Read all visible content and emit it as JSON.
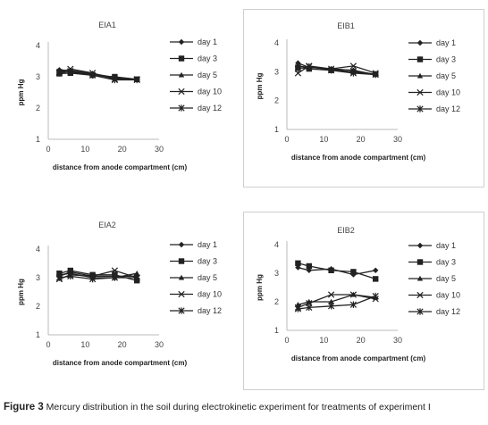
{
  "caption": {
    "figure_number": "Figure 3",
    "text": "Mercury distribution in the soil during electrokinetic experiment for treatments of experiment I"
  },
  "chart_data": [
    {
      "type": "line",
      "title": "EIA1",
      "xlabel": "distance from anode compartment (cm)",
      "ylabel": "ppm Hg",
      "xlim": [
        0,
        30
      ],
      "ylim": [
        1,
        4
      ],
      "xticks": [
        0,
        10,
        20,
        30
      ],
      "yticks": [
        1,
        2,
        3,
        4
      ],
      "legend_position": "right",
      "series": [
        {
          "name": "day 1",
          "marker": "diamond",
          "x": [
            3,
            6,
            12,
            18,
            24
          ],
          "y": [
            3.22,
            3.2,
            3.1,
            2.98,
            2.92
          ]
        },
        {
          "name": "day 3",
          "marker": "square",
          "x": [
            3,
            6,
            12,
            18,
            24
          ],
          "y": [
            3.1,
            3.12,
            3.05,
            3.0,
            2.92
          ]
        },
        {
          "name": "day 5",
          "marker": "triangle",
          "x": [
            3,
            6,
            12,
            18,
            24
          ],
          "y": [
            3.18,
            3.15,
            3.08,
            2.95,
            2.9
          ]
        },
        {
          "name": "day 10",
          "marker": "x",
          "x": [
            3,
            6,
            12,
            18,
            24
          ],
          "y": [
            3.15,
            3.25,
            3.12,
            2.92,
            2.92
          ]
        },
        {
          "name": "day 12",
          "marker": "star",
          "x": [
            3,
            6,
            12,
            18,
            24
          ],
          "y": [
            3.12,
            3.18,
            3.05,
            2.9,
            2.9
          ]
        }
      ]
    },
    {
      "type": "line",
      "title": "EIB1",
      "xlabel": "distance from anode compartment (cm)",
      "ylabel": "ppm Hg",
      "xlim": [
        0,
        30
      ],
      "ylim": [
        1,
        4
      ],
      "xticks": [
        0,
        10,
        20,
        30
      ],
      "yticks": [
        1,
        2,
        3,
        4
      ],
      "legend_position": "right",
      "series": [
        {
          "name": "day 1",
          "marker": "diamond",
          "x": [
            3,
            6,
            12,
            18,
            24
          ],
          "y": [
            3.3,
            3.15,
            3.1,
            3.05,
            2.9
          ]
        },
        {
          "name": "day 3",
          "marker": "square",
          "x": [
            3,
            6,
            12,
            18,
            24
          ],
          "y": [
            3.15,
            3.1,
            3.05,
            3.0,
            2.92
          ]
        },
        {
          "name": "day 5",
          "marker": "triangle",
          "x": [
            3,
            6,
            12,
            18,
            24
          ],
          "y": [
            3.2,
            3.15,
            3.1,
            2.98,
            2.9
          ]
        },
        {
          "name": "day 10",
          "marker": "x",
          "x": [
            3,
            6,
            12,
            18,
            24
          ],
          "y": [
            2.95,
            3.2,
            3.1,
            3.2,
            2.95
          ]
        },
        {
          "name": "day 12",
          "marker": "star",
          "x": [
            3,
            6,
            12,
            18,
            24
          ],
          "y": [
            3.1,
            3.18,
            3.05,
            2.95,
            2.9
          ]
        }
      ]
    },
    {
      "type": "line",
      "title": "EIA2",
      "xlabel": "distance from anode compartment (cm)",
      "ylabel": "ppm Hg",
      "xlim": [
        0,
        30
      ],
      "ylim": [
        1,
        4
      ],
      "xticks": [
        0,
        10,
        20,
        30
      ],
      "yticks": [
        1,
        2,
        3,
        4
      ],
      "legend_position": "right",
      "series": [
        {
          "name": "day 1",
          "marker": "diamond",
          "x": [
            3,
            6,
            12,
            18,
            24
          ],
          "y": [
            3.05,
            3.2,
            3.05,
            3.05,
            3.05
          ]
        },
        {
          "name": "day 3",
          "marker": "square",
          "x": [
            3,
            6,
            12,
            18,
            24
          ],
          "y": [
            3.15,
            3.25,
            3.1,
            3.1,
            2.9
          ]
        },
        {
          "name": "day 5",
          "marker": "triangle",
          "x": [
            3,
            6,
            12,
            18,
            24
          ],
          "y": [
            3.1,
            3.15,
            3.0,
            3.0,
            3.15
          ]
        },
        {
          "name": "day 10",
          "marker": "x",
          "x": [
            3,
            6,
            12,
            18,
            24
          ],
          "y": [
            2.95,
            3.1,
            3.05,
            3.25,
            3.0
          ]
        },
        {
          "name": "day 12",
          "marker": "star",
          "x": [
            3,
            6,
            12,
            18,
            24
          ],
          "y": [
            3.0,
            3.05,
            2.95,
            3.0,
            3.0
          ]
        }
      ]
    },
    {
      "type": "line",
      "title": "EIB2",
      "xlabel": "distance from anode compartment (cm)",
      "ylabel": "ppm Hg",
      "xlim": [
        0,
        30
      ],
      "ylim": [
        1,
        4
      ],
      "xticks": [
        0,
        10,
        20,
        30
      ],
      "yticks": [
        1,
        2,
        3,
        4
      ],
      "legend_position": "right",
      "series": [
        {
          "name": "day 1",
          "marker": "diamond",
          "x": [
            3,
            6,
            12,
            18,
            24
          ],
          "y": [
            3.2,
            3.1,
            3.15,
            2.95,
            3.1
          ]
        },
        {
          "name": "day 3",
          "marker": "square",
          "x": [
            3,
            6,
            12,
            18,
            24
          ],
          "y": [
            3.35,
            3.25,
            3.1,
            3.05,
            2.8
          ]
        },
        {
          "name": "day 5",
          "marker": "triangle",
          "x": [
            3,
            6,
            12,
            18,
            24
          ],
          "y": [
            1.9,
            2.0,
            2.0,
            2.25,
            2.15
          ]
        },
        {
          "name": "day 10",
          "marker": "x",
          "x": [
            3,
            6,
            12,
            18,
            24
          ],
          "y": [
            1.8,
            1.95,
            2.25,
            2.25,
            2.1
          ]
        },
        {
          "name": "day 12",
          "marker": "star",
          "x": [
            3,
            6,
            12,
            18,
            24
          ],
          "y": [
            1.75,
            1.8,
            1.85,
            1.9,
            2.2
          ]
        }
      ]
    }
  ]
}
